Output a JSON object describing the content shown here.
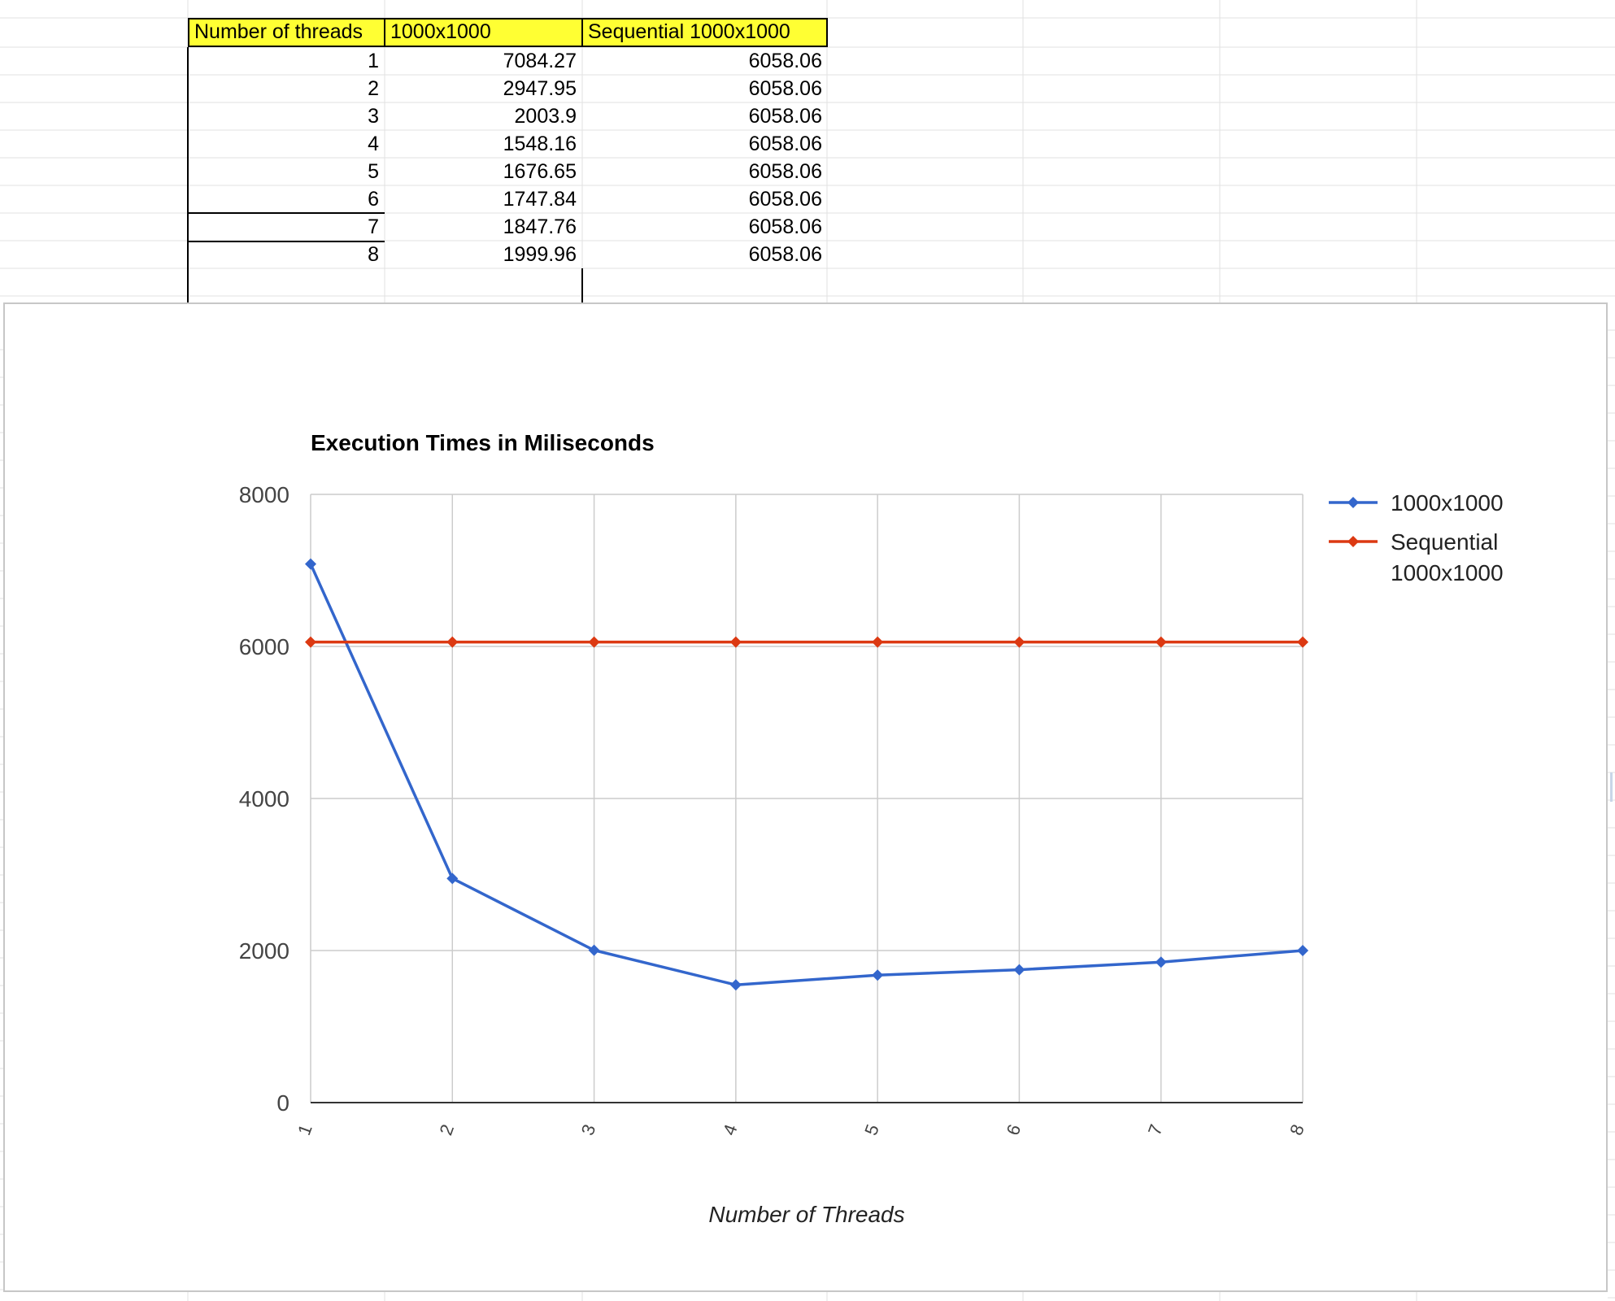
{
  "table": {
    "headers": [
      "Number of threads",
      "1000x1000",
      "Sequential 1000x1000"
    ],
    "rows": [
      [
        "1",
        "7084.27",
        "6058.06"
      ],
      [
        "2",
        "2947.95",
        "6058.06"
      ],
      [
        "3",
        "2003.9",
        "6058.06"
      ],
      [
        "4",
        "1548.16",
        "6058.06"
      ],
      [
        "5",
        "1676.65",
        "6058.06"
      ],
      [
        "6",
        "1747.84",
        "6058.06"
      ],
      [
        "7",
        "1847.76",
        "6058.06"
      ],
      [
        "8",
        "1999.96",
        "6058.06"
      ]
    ]
  },
  "chart_data": {
    "type": "line",
    "title": "Execution Times in Miliseconds",
    "xlabel": "Number of Threads",
    "ylabel": "",
    "categories": [
      "1",
      "2",
      "3",
      "4",
      "5",
      "6",
      "7",
      "8"
    ],
    "ylim": [
      0,
      8000
    ],
    "yticks": [
      "0",
      "2000",
      "4000",
      "6000",
      "8000"
    ],
    "grid": true,
    "legend_position": "right",
    "series": [
      {
        "name": "1000x1000",
        "color": "#3366cc",
        "marker": "diamond",
        "values": [
          7084.27,
          2947.95,
          2003.9,
          1548.16,
          1676.65,
          1747.84,
          1847.76,
          1999.96
        ]
      },
      {
        "name": "Sequential 1000x1000",
        "name_lines": [
          "Sequential",
          "1000x1000"
        ],
        "color": "#dc3912",
        "marker": "diamond",
        "values": [
          6058.06,
          6058.06,
          6058.06,
          6058.06,
          6058.06,
          6058.06,
          6058.06,
          6058.06
        ]
      }
    ]
  }
}
